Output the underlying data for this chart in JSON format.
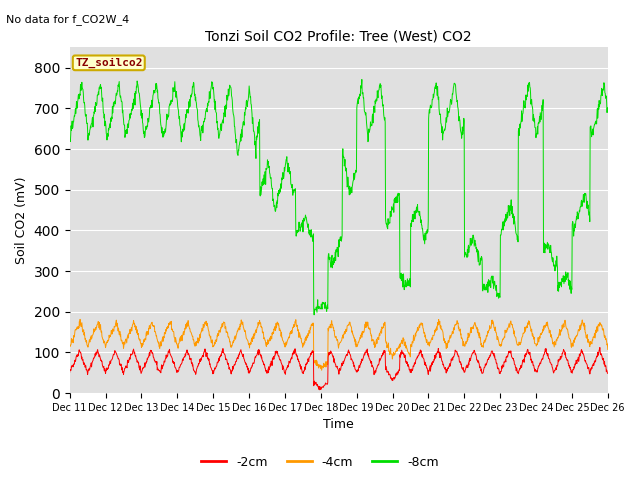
{
  "title": "Tonzi Soil CO2 Profile: Tree (West) CO2",
  "subtitle": "No data for f_CO2W_4",
  "ylabel": "Soil CO2 (mV)",
  "xlabel": "Time",
  "legend_label": "TZ_soilco2",
  "line_labels": [
    "-2cm",
    "-4cm",
    "-8cm"
  ],
  "line_colors": [
    "#ff0000",
    "#ff9900",
    "#00dd00"
  ],
  "ylim": [
    0,
    850
  ],
  "yticks": [
    0,
    100,
    200,
    300,
    400,
    500,
    600,
    700,
    800
  ],
  "plot_bg": "#e0e0e0",
  "figsize": [
    6.4,
    4.8
  ],
  "dpi": 100
}
